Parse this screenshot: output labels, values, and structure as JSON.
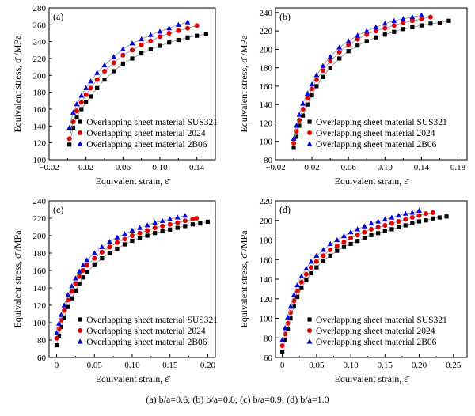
{
  "caption": "(a)  b/a=0.6; (b)  b/a=0.8; (c)  b/a=0.9; (d) b/a=1.0",
  "styles": {
    "colors": {
      "SUS321": "#000000",
      "2024": "#e00000",
      "2B06": "#0000e0",
      "line": "#9a9a9a"
    },
    "markers": {
      "SUS321": "square",
      "2024": "circle",
      "2B06": "triangle"
    }
  },
  "chart_data": [
    {
      "type": "line",
      "panel_label": "(a)",
      "xlabel": "Equivalent strain, ε̄",
      "ylabel": "Equivalent stress, σ̄ /MPa",
      "xlim": [
        -0.02,
        0.16
      ],
      "ylim": [
        100,
        280
      ],
      "xticks": [
        "−0.02",
        "0.02",
        "0.06",
        "0.10",
        "0.14"
      ],
      "xtick_values": [
        -0.02,
        0.02,
        0.06,
        0.1,
        0.14
      ],
      "yticks": [
        "100",
        "120",
        "140",
        "160",
        "180",
        "200",
        "220",
        "240",
        "260",
        "280"
      ],
      "ytick_values": [
        100,
        120,
        140,
        160,
        180,
        200,
        220,
        240,
        260,
        280
      ],
      "legend_position": "bottom-right",
      "series": [
        {
          "name": "Overlapping sheet material SUS321",
          "key": "SUS321",
          "x": [
            0.002,
            0.006,
            0.01,
            0.015,
            0.02,
            0.025,
            0.032,
            0.04,
            0.05,
            0.06,
            0.07,
            0.08,
            0.09,
            0.1,
            0.11,
            0.12,
            0.13,
            0.14,
            0.15
          ],
          "y": [
            118,
            138,
            151,
            160,
            168,
            175,
            185,
            195,
            205,
            214,
            220,
            226,
            231,
            235,
            239,
            242,
            245,
            247,
            249
          ]
        },
        {
          "name": "Overlapping sheet material 2024",
          "key": "2024",
          "x": [
            0.002,
            0.006,
            0.01,
            0.015,
            0.02,
            0.025,
            0.032,
            0.04,
            0.05,
            0.06,
            0.07,
            0.08,
            0.09,
            0.1,
            0.11,
            0.12,
            0.13,
            0.14
          ],
          "y": [
            125,
            145,
            158,
            168,
            177,
            185,
            195,
            205,
            215,
            224,
            230,
            236,
            241,
            246,
            250,
            253,
            256,
            259
          ]
        },
        {
          "name": "Overlapping sheet material 2B06",
          "key": "2B06",
          "x": [
            0.002,
            0.006,
            0.01,
            0.015,
            0.02,
            0.025,
            0.032,
            0.04,
            0.05,
            0.06,
            0.07,
            0.08,
            0.09,
            0.1,
            0.11,
            0.12,
            0.13
          ],
          "y": [
            138,
            156,
            166,
            176,
            185,
            193,
            203,
            212,
            222,
            231,
            238,
            243,
            248,
            252,
            256,
            260,
            263
          ]
        }
      ]
    },
    {
      "type": "line",
      "panel_label": "(b)",
      "xlabel": "Equivalent strain, ε̄",
      "ylabel": "Equivalent stress, σ̄ /MPa",
      "xlim": [
        -0.02,
        0.19
      ],
      "ylim": [
        80,
        245
      ],
      "xticks": [
        "−0.02",
        "0.02",
        "0.06",
        "0.10",
        "0.14",
        "0.18"
      ],
      "xtick_values": [
        -0.02,
        0.02,
        0.06,
        0.1,
        0.14,
        0.18
      ],
      "yticks": [
        "80",
        "100",
        "120",
        "140",
        "160",
        "180",
        "200",
        "220",
        "240"
      ],
      "ytick_values": [
        80,
        100,
        120,
        140,
        160,
        180,
        200,
        220,
        240
      ],
      "legend_position": "bottom-right",
      "series": [
        {
          "name": "Overlapping sheet material SUS321",
          "key": "SUS321",
          "x": [
            0.0,
            0.003,
            0.006,
            0.01,
            0.015,
            0.02,
            0.025,
            0.032,
            0.04,
            0.05,
            0.06,
            0.07,
            0.08,
            0.09,
            0.1,
            0.11,
            0.12,
            0.13,
            0.14,
            0.15,
            0.16,
            0.17
          ],
          "y": [
            93,
            105,
            117,
            128,
            140,
            150,
            160,
            170,
            180,
            190,
            198,
            204,
            209,
            213,
            216,
            219,
            222,
            224,
            226,
            228,
            229,
            231
          ]
        },
        {
          "name": "Overlapping sheet material 2024",
          "key": "2024",
          "x": [
            0.0,
            0.003,
            0.006,
            0.01,
            0.015,
            0.02,
            0.025,
            0.032,
            0.04,
            0.05,
            0.06,
            0.07,
            0.08,
            0.09,
            0.1,
            0.11,
            0.12,
            0.13,
            0.14,
            0.15
          ],
          "y": [
            98,
            111,
            123,
            135,
            147,
            157,
            167,
            177,
            187,
            197,
            205,
            211,
            216,
            220,
            223,
            226,
            229,
            231,
            233,
            235
          ]
        },
        {
          "name": "Overlapping sheet material 2B06",
          "key": "2B06",
          "x": [
            0.0,
            0.003,
            0.006,
            0.01,
            0.015,
            0.02,
            0.025,
            0.032,
            0.04,
            0.05,
            0.06,
            0.07,
            0.08,
            0.09,
            0.1,
            0.11,
            0.12,
            0.13,
            0.14
          ],
          "y": [
            103,
            117,
            129,
            141,
            152,
            162,
            172,
            182,
            192,
            202,
            209,
            215,
            220,
            224,
            228,
            231,
            233,
            235,
            237
          ]
        }
      ]
    },
    {
      "type": "line",
      "panel_label": "(c)",
      "xlabel": "Equivalent strain, ε̄",
      "ylabel": "Equivalent stress, σ̄ /MPa",
      "xlim": [
        -0.01,
        0.21
      ],
      "ylim": [
        60,
        240
      ],
      "xticks": [
        "0",
        "0.05",
        "0.10",
        "0.15",
        "0.20"
      ],
      "xtick_values": [
        0,
        0.05,
        0.1,
        0.15,
        0.2
      ],
      "yticks": [
        "60",
        "80",
        "100",
        "120",
        "140",
        "160",
        "180",
        "200",
        "220",
        "240"
      ],
      "ytick_values": [
        60,
        80,
        100,
        120,
        140,
        160,
        180,
        200,
        220,
        240
      ],
      "legend_position": "bottom-right",
      "series": [
        {
          "name": "Overlapping sheet material SUS321",
          "key": "SUS321",
          "x": [
            0.0,
            0.003,
            0.006,
            0.01,
            0.015,
            0.02,
            0.025,
            0.03,
            0.035,
            0.04,
            0.05,
            0.06,
            0.07,
            0.08,
            0.09,
            0.1,
            0.11,
            0.12,
            0.13,
            0.14,
            0.15,
            0.16,
            0.17,
            0.18,
            0.19,
            0.2
          ],
          "y": [
            74,
            85,
            95,
            106,
            118,
            128,
            137,
            145,
            152,
            158,
            167,
            174,
            180,
            185,
            190,
            194,
            197,
            200,
            203,
            205,
            207,
            209,
            211,
            213,
            214,
            216
          ]
        },
        {
          "name": "Overlapping sheet material 2024",
          "key": "2024",
          "x": [
            0.0,
            0.003,
            0.006,
            0.01,
            0.015,
            0.02,
            0.025,
            0.03,
            0.035,
            0.04,
            0.05,
            0.06,
            0.07,
            0.08,
            0.09,
            0.1,
            0.11,
            0.12,
            0.13,
            0.14,
            0.15,
            0.16,
            0.17,
            0.18,
            0.185
          ],
          "y": [
            82,
            93,
            103,
            114,
            126,
            136,
            145,
            153,
            160,
            166,
            174,
            181,
            187,
            192,
            196,
            200,
            203,
            206,
            209,
            211,
            213,
            215,
            217,
            219,
            220
          ]
        },
        {
          "name": "Overlapping sheet material 2B06",
          "key": "2B06",
          "x": [
            0.0,
            0.003,
            0.006,
            0.01,
            0.015,
            0.02,
            0.025,
            0.03,
            0.035,
            0.04,
            0.05,
            0.06,
            0.07,
            0.08,
            0.09,
            0.1,
            0.11,
            0.12,
            0.13,
            0.14,
            0.15,
            0.16,
            0.17
          ],
          "y": [
            88,
            99,
            109,
            120,
            132,
            142,
            151,
            159,
            166,
            172,
            180,
            187,
            193,
            198,
            202,
            206,
            209,
            212,
            215,
            217,
            219,
            221,
            223
          ]
        }
      ]
    },
    {
      "type": "line",
      "panel_label": "(d)",
      "xlabel": "Equivalent strain, ε̄",
      "ylabel": "Equivalent stress, σ̄ /MPa",
      "xlim": [
        -0.01,
        0.27
      ],
      "ylim": [
        60,
        220
      ],
      "xticks": [
        "0",
        "0.05",
        "0.10",
        "0.15",
        "0.20",
        "0.25"
      ],
      "xtick_values": [
        0,
        0.05,
        0.1,
        0.15,
        0.2,
        0.25
      ],
      "yticks": [
        "60",
        "80",
        "100",
        "120",
        "140",
        "160",
        "180",
        "200",
        "220"
      ],
      "ytick_values": [
        60,
        80,
        100,
        120,
        140,
        160,
        180,
        200,
        220
      ],
      "legend_position": "bottom-right",
      "series": [
        {
          "name": "Overlapping sheet material SUS321",
          "key": "SUS321",
          "x": [
            0.0,
            0.004,
            0.008,
            0.012,
            0.017,
            0.022,
            0.028,
            0.035,
            0.042,
            0.05,
            0.06,
            0.07,
            0.08,
            0.09,
            0.1,
            0.11,
            0.12,
            0.13,
            0.14,
            0.15,
            0.16,
            0.17,
            0.18,
            0.19,
            0.2,
            0.21,
            0.22,
            0.23,
            0.24
          ],
          "y": [
            66,
            78,
            89,
            100,
            112,
            122,
            131,
            139,
            146,
            152,
            159,
            164,
            169,
            173,
            176,
            179,
            182,
            185,
            187,
            189,
            191,
            193,
            195,
            197,
            199,
            200,
            202,
            203,
            204
          ]
        },
        {
          "name": "Overlapping sheet material 2024",
          "key": "2024",
          "x": [
            0.0,
            0.004,
            0.008,
            0.012,
            0.017,
            0.022,
            0.028,
            0.035,
            0.042,
            0.05,
            0.06,
            0.07,
            0.08,
            0.09,
            0.1,
            0.11,
            0.12,
            0.13,
            0.14,
            0.15,
            0.16,
            0.17,
            0.18,
            0.19,
            0.2,
            0.21,
            0.22
          ],
          "y": [
            72,
            84,
            95,
            106,
            118,
            128,
            137,
            145,
            152,
            158,
            164,
            170,
            174,
            178,
            182,
            185,
            188,
            191,
            193,
            195,
            197,
            199,
            201,
            203,
            205,
            207,
            208
          ]
        },
        {
          "name": "Overlapping sheet material 2B06",
          "key": "2B06",
          "x": [
            0.0,
            0.004,
            0.008,
            0.012,
            0.017,
            0.022,
            0.028,
            0.035,
            0.042,
            0.05,
            0.06,
            0.07,
            0.08,
            0.09,
            0.1,
            0.11,
            0.12,
            0.13,
            0.14,
            0.15,
            0.16,
            0.17,
            0.18,
            0.19,
            0.2
          ],
          "y": [
            78,
            90,
            101,
            112,
            124,
            134,
            143,
            151,
            158,
            164,
            170,
            176,
            180,
            184,
            188,
            191,
            194,
            197,
            199,
            201,
            203,
            205,
            207,
            208,
            210
          ]
        }
      ]
    }
  ]
}
